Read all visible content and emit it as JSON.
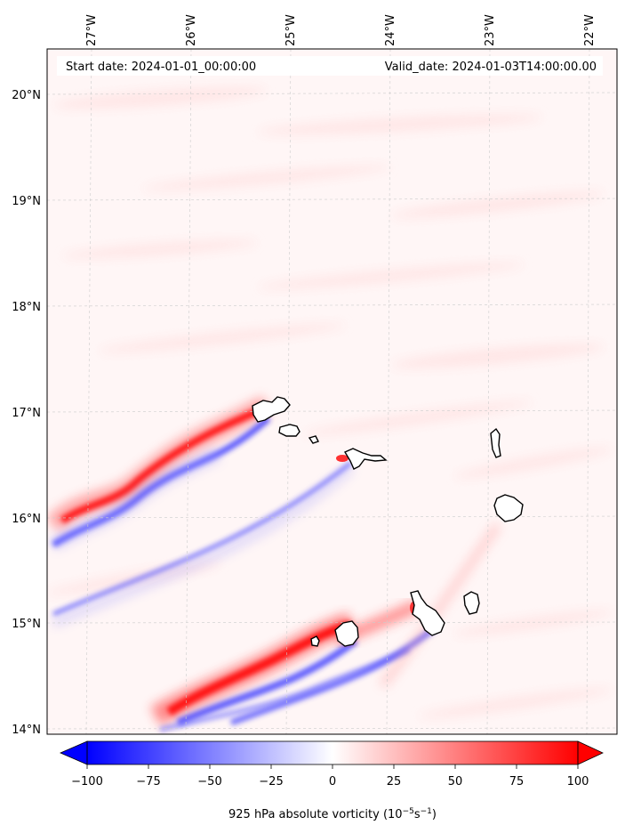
{
  "map": {
    "start_date": "Start date: 2024-01-01_00:00:00",
    "valid_date": "Valid_date: 2024-01-03T14:00:00.00",
    "lon_labels": [
      "27°W",
      "26°W",
      "25°W",
      "24°W",
      "23°W",
      "22°W"
    ],
    "lat_labels": [
      "20°N",
      "19°N",
      "18°N",
      "17°N",
      "16°N",
      "15°N",
      "14°N"
    ]
  },
  "colorbar": {
    "ticks": [
      "−100",
      "−75",
      "−50",
      "−25",
      "0",
      "25",
      "50",
      "75",
      "100"
    ],
    "label_main": "925 hPa absolute vorticity (10",
    "label_exp1": "−5",
    "label_mid": "s",
    "label_exp2": "−1",
    "label_end": ")",
    "vmin": -100,
    "vmax": 100,
    "colors": {
      "neg": "#0000ff",
      "mid": "#ffffff",
      "pos": "#ff0000"
    }
  }
}
